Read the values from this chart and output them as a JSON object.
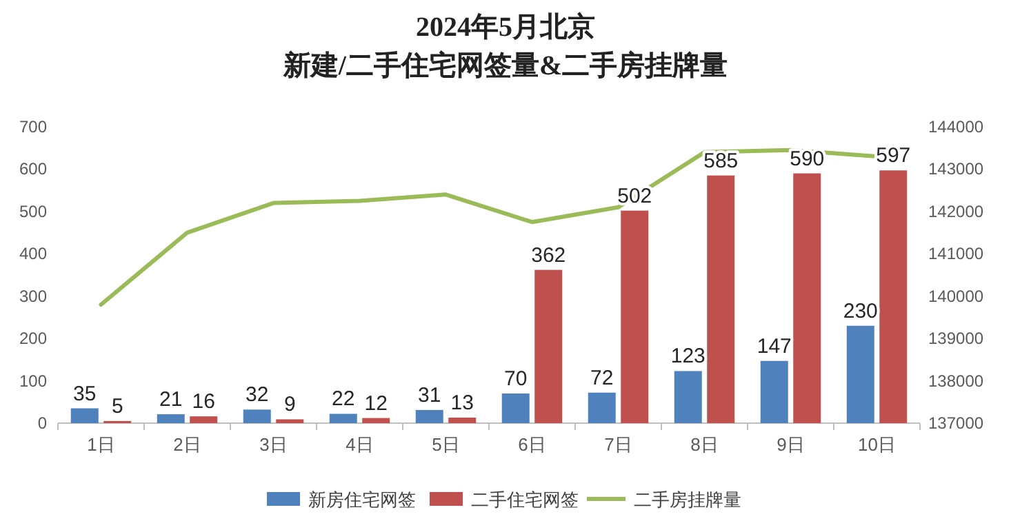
{
  "chart_data": {
    "type": "bar",
    "title": "2024年5月北京",
    "subtitle": "新建/二手住宅网签量&二手房挂牌量",
    "categories": [
      "1日",
      "2日",
      "3日",
      "4日",
      "5日",
      "6日",
      "7日",
      "8日",
      "9日",
      "10日"
    ],
    "series": [
      {
        "name": "新房住宅网签",
        "color": "#4f81bd",
        "values": [
          35,
          21,
          32,
          22,
          31,
          70,
          72,
          123,
          147,
          230
        ],
        "value_labels": [
          "35",
          "21",
          "32",
          "22",
          "31",
          "70",
          "72",
          "123",
          "147",
          "230"
        ]
      },
      {
        "name": "二手住宅网签",
        "color": "#c0504d",
        "values": [
          5,
          16,
          9,
          12,
          13,
          362,
          502,
          585,
          590,
          597
        ],
        "value_labels": [
          "5",
          "16",
          "9",
          "12",
          "13",
          "362",
          "502",
          "585",
          "590",
          "597"
        ]
      },
      {
        "name": "二手房挂牌量",
        "type": "line",
        "axis": "y2",
        "color": "#9bbb59",
        "values": [
          139800,
          141500,
          142200,
          142250,
          142400,
          141750,
          142100,
          143400,
          143450,
          143300
        ]
      }
    ],
    "ylim": [
      0,
      700
    ],
    "yticks": [
      0,
      100,
      200,
      300,
      400,
      500,
      600,
      700
    ],
    "y2lim": [
      137000,
      144000
    ],
    "y2ticks": [
      137000,
      138000,
      139000,
      140000,
      141000,
      142000,
      143000,
      144000
    ],
    "legend": "bottom"
  }
}
